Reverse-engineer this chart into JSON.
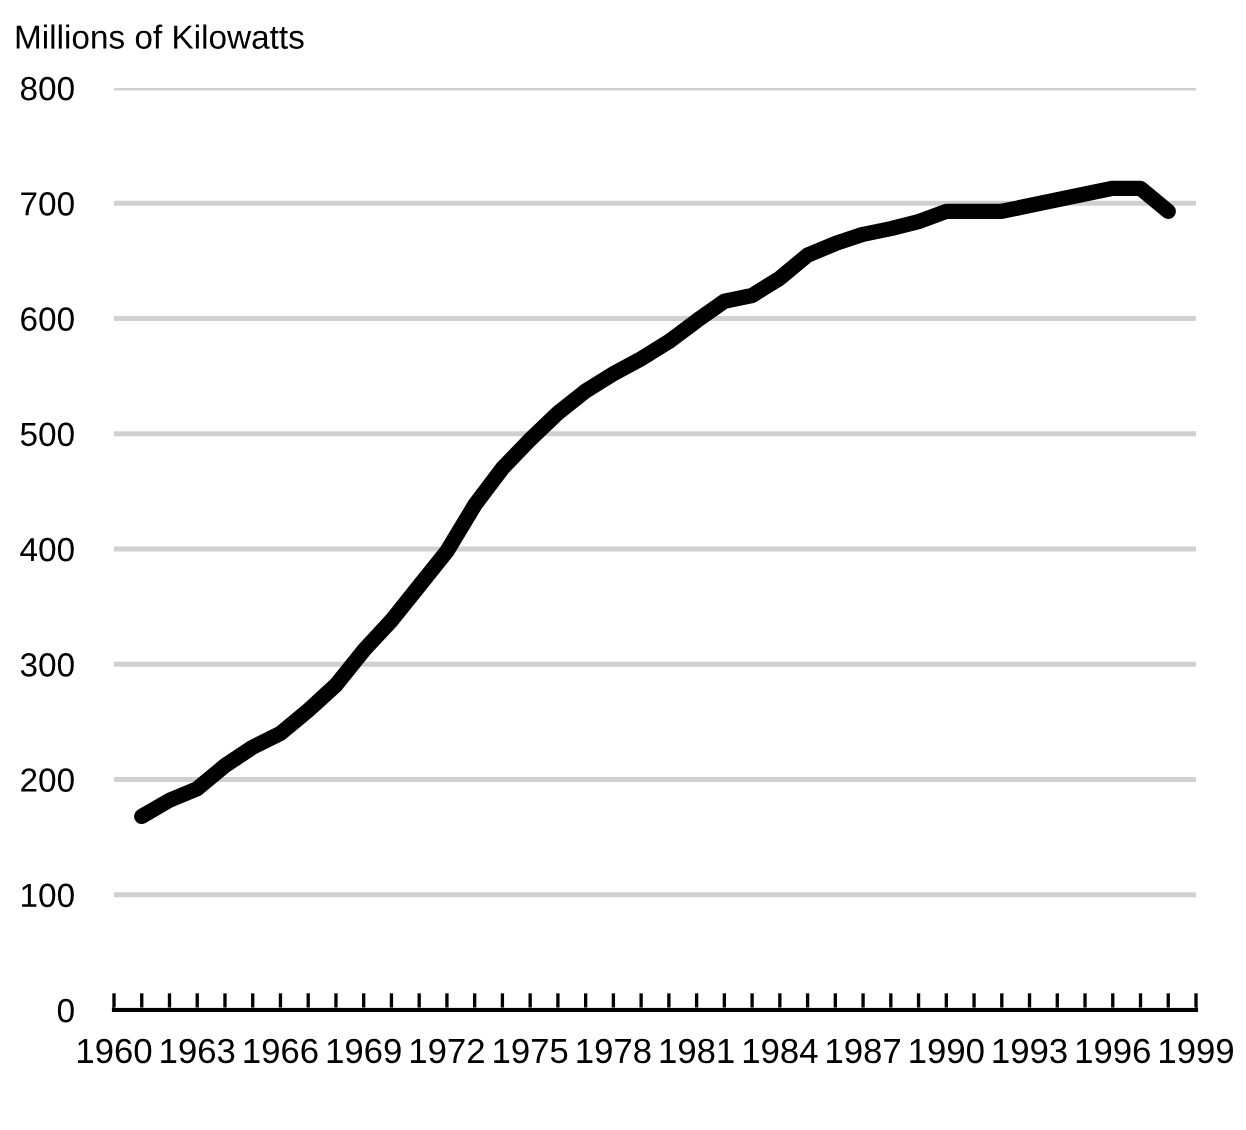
{
  "chart_data": {
    "type": "line",
    "ylabel": "Millions of Kilowatts",
    "x": [
      1961,
      1962,
      1963,
      1964,
      1965,
      1966,
      1967,
      1968,
      1969,
      1970,
      1971,
      1972,
      1973,
      1974,
      1975,
      1976,
      1977,
      1978,
      1979,
      1980,
      1981,
      1982,
      1983,
      1984,
      1985,
      1986,
      1987,
      1988,
      1989,
      1990,
      1991,
      1992,
      1993,
      1994,
      1995,
      1996,
      1997,
      1998
    ],
    "series": [
      {
        "color": "#000000",
        "values": [
          168,
          182,
          192,
          212,
          228,
          240,
          260,
          282,
          312,
          338,
          368,
          398,
          438,
          470,
          495,
          518,
          537,
          552,
          565,
          580,
          598,
          615,
          620,
          635,
          655,
          665,
          673,
          678,
          684,
          693,
          693,
          693,
          698,
          703,
          708,
          713,
          713,
          693
        ]
      }
    ],
    "xlim": [
      1960,
      1999
    ],
    "xticks": [
      1960,
      {
        "value": 1961,
        "label": null
      },
      {
        "value": 1962,
        "label": null
      },
      1963,
      {
        "value": 1964,
        "label": null
      },
      {
        "value": 1965,
        "label": null
      },
      1966,
      {
        "value": 1967,
        "label": null
      },
      {
        "value": 1968,
        "label": null
      },
      1969,
      {
        "value": 1970,
        "label": null
      },
      {
        "value": 1971,
        "label": null
      },
      1972,
      {
        "value": 1973,
        "label": null
      },
      {
        "value": 1974,
        "label": null
      },
      1975,
      {
        "value": 1976,
        "label": null
      },
      {
        "value": 1977,
        "label": null
      },
      1978,
      {
        "value": 1979,
        "label": null
      },
      {
        "value": 1980,
        "label": null
      },
      1981,
      {
        "value": 1982,
        "label": null
      },
      {
        "value": 1983,
        "label": null
      },
      1984,
      {
        "value": 1985,
        "label": null
      },
      {
        "value": 1986,
        "label": null
      },
      1987,
      {
        "value": 1988,
        "label": null
      },
      {
        "value": 1989,
        "label": null
      },
      1990,
      {
        "value": 1991,
        "label": null
      },
      {
        "value": 1992,
        "label": null
      },
      1993,
      {
        "value": 1994,
        "label": null
      },
      {
        "value": 1995,
        "label": null
      },
      1996,
      {
        "value": 1997,
        "label": null
      },
      {
        "value": 1998,
        "label": null
      },
      1999
    ],
    "ylim": [
      0,
      800
    ],
    "yticks": [
      0,
      100,
      200,
      300,
      400,
      500,
      600,
      700,
      800
    ],
    "grid": "y",
    "marker": "none",
    "line_style": "solid"
  }
}
